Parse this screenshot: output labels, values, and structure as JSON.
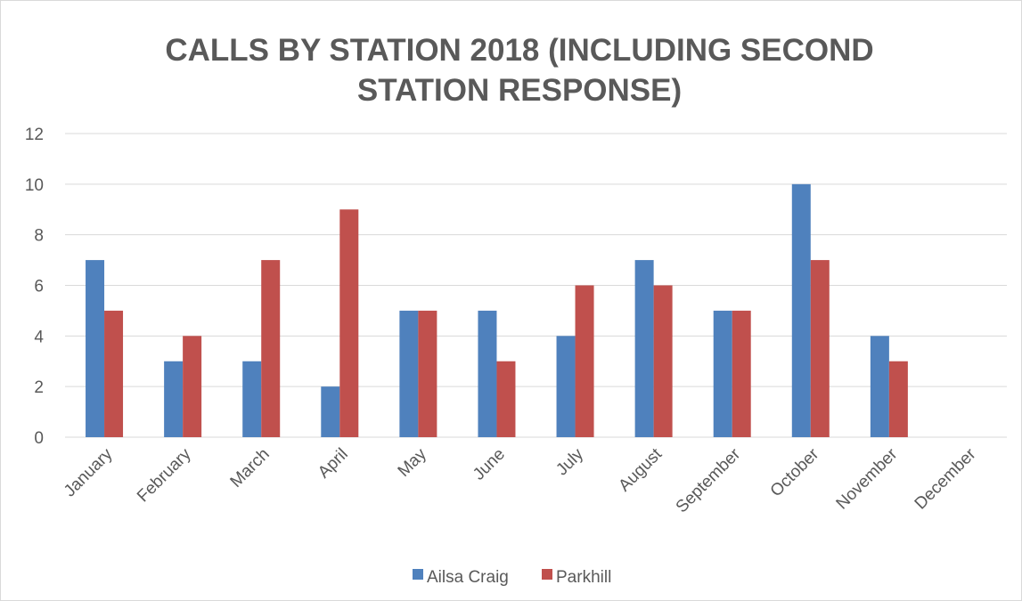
{
  "chart_data": {
    "type": "bar",
    "title": "CALLS BY STATION 2018 (INCLUDING SECOND STATION RESPONSE)",
    "title_lines": [
      "CALLS BY STATION 2018 (INCLUDING SECOND",
      "STATION RESPONSE)"
    ],
    "categories": [
      "January",
      "February",
      "March",
      "April",
      "May",
      "June",
      "July",
      "August",
      "September",
      "October",
      "November",
      "December"
    ],
    "series": [
      {
        "name": "Ailsa Craig",
        "color": "#4f81bd",
        "values": [
          7,
          3,
          3,
          2,
          5,
          5,
          4,
          7,
          5,
          10,
          4,
          0
        ]
      },
      {
        "name": "Parkhill",
        "color": "#c0504d",
        "values": [
          5,
          4,
          7,
          9,
          5,
          3,
          6,
          6,
          5,
          7,
          3,
          0
        ]
      }
    ],
    "ylim": [
      0,
      12
    ],
    "yticks": [
      "0",
      "2",
      "4",
      "6",
      "8",
      "10",
      "12"
    ],
    "xlabel": "",
    "ylabel": "",
    "grid": true,
    "legend_position": "bottom"
  }
}
